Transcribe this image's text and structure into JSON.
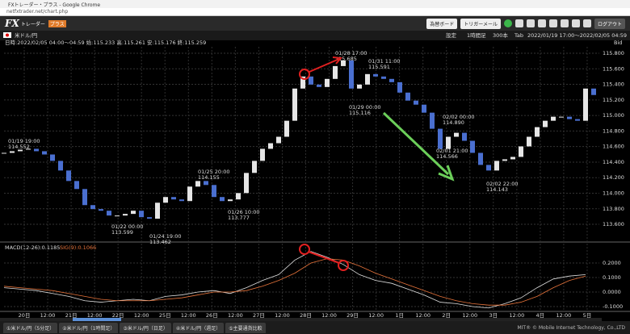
{
  "window": {
    "title": "FXトレーダー・プラス - Google Chrome",
    "url": "netfxtrader.net/chart.php"
  },
  "toolbar": {
    "logo": "FX",
    "logo_sub": "トレーダー",
    "logo_badge": "プラス",
    "buttons": [
      "為替ボード",
      "トリガーメール"
    ],
    "logout": "ログアウト"
  },
  "chart_header": {
    "pair": "米ドル/円",
    "controls": [
      "設定",
      "1時間足",
      "300本",
      "Tab"
    ],
    "range": "2022/01/19 17:00～2022/02/05 04:59"
  },
  "info": {
    "text": "日時:2022/02/05 04:00～04:59 始:115.233 高:115.261 安:115.176 終:115.259",
    "side": "Bid"
  },
  "chart_data": {
    "type": "candlestick",
    "closes": [
      114.519,
      114.54,
      114.56,
      114.571,
      114.54,
      114.498,
      114.416,
      114.292,
      114.157,
      114.054,
      113.847,
      113.796,
      113.775,
      113.713,
      113.713,
      113.734,
      113.775,
      113.692,
      113.672,
      113.878,
      113.951,
      113.92,
      113.899,
      114.085,
      114.157,
      114.106,
      113.951,
      113.899,
      113.92,
      114.002,
      114.261,
      114.416,
      114.571,
      114.643,
      114.726,
      114.932,
      115.346,
      115.501,
      115.397,
      115.366,
      115.47,
      115.635,
      115.707,
      115.346,
      115.397,
      115.532,
      115.501,
      115.47,
      115.428,
      115.294,
      115.191,
      115.139,
      115.036,
      114.829,
      114.571,
      114.726,
      114.777,
      114.674,
      114.519,
      114.364,
      114.292,
      114.416,
      114.436,
      114.467,
      114.602,
      114.726,
      114.85,
      114.932,
      114.984,
      114.984,
      114.953,
      114.932,
      115.346,
      115.263
    ],
    "up_color": "#e6e6e6",
    "down_color": "#4a6fd0",
    "ylim": [
      113.393,
      115.883
    ],
    "yticks": [
      {
        "value": 115.8,
        "label": "115.800"
      },
      {
        "value": 115.6,
        "label": "115.600"
      },
      {
        "value": 115.4,
        "label": "115.400"
      },
      {
        "value": 115.2,
        "label": "115.200"
      },
      {
        "value": 115.0,
        "label": "115.000"
      },
      {
        "value": 114.8,
        "label": "114.800"
      },
      {
        "value": 114.6,
        "label": "114.600"
      },
      {
        "value": 114.4,
        "label": "114.400"
      },
      {
        "value": 114.2,
        "label": "114.200"
      },
      {
        "value": 114.0,
        "label": "114.000"
      },
      {
        "value": 113.8,
        "label": "113.800"
      },
      {
        "value": 113.6,
        "label": "113.600"
      }
    ],
    "grid": true,
    "x_labels": [
      "20日",
      "12:00",
      "21日",
      "12:00",
      "22日",
      "12:00",
      "25日",
      "12:00",
      "26日",
      "12:00",
      "27日",
      "12:00",
      "28日",
      "12:00",
      "29日",
      "12:00",
      "1日",
      "12:00",
      "2日",
      "12:00",
      "3日",
      "12:00",
      "4日",
      "12:00",
      "5日"
    ],
    "annotations": [
      {
        "time": "01/19 19:00",
        "price": "114.552"
      },
      {
        "time": "01/22 00:00",
        "price": "113.599"
      },
      {
        "time": "01/24 19:00",
        "price": "113.462"
      },
      {
        "time": "01/25 20:00",
        "price": "114.155"
      },
      {
        "time": "01/26 10:00",
        "price": "113.777"
      },
      {
        "time": "01/28 17:00",
        "price": "115.685"
      },
      {
        "time": "01/29 00:00",
        "price": "115.116"
      },
      {
        "time": "01/31 11:00",
        "price": "115.591"
      },
      {
        "time": "02/01 21:00",
        "price": "114.566"
      },
      {
        "time": "02/02 00:00",
        "price": "114.890"
      },
      {
        "time": "02/02 22:00",
        "price": "114.143"
      }
    ]
  },
  "macd": {
    "type": "line",
    "label": "MACD(12-26):0.1185",
    "signal_label": "SIG(9):0.1066",
    "series": [
      {
        "color": "#e0e0e0",
        "values": [
          0.03,
          0.02,
          0.01,
          -0.01,
          -0.03,
          -0.06,
          -0.07,
          -0.06,
          -0.05,
          -0.06,
          -0.03,
          -0.02,
          0.0,
          0.01,
          -0.01,
          0.03,
          0.08,
          0.12,
          0.22,
          0.28,
          0.24,
          0.19,
          0.12,
          0.08,
          0.06,
          0.02,
          -0.02,
          -0.07,
          -0.08,
          -0.1,
          -0.11,
          -0.08,
          -0.04,
          0.03,
          0.09,
          0.11,
          0.12
        ]
      },
      {
        "color": "#e8743b",
        "values": [
          0.04,
          0.03,
          0.02,
          0.01,
          -0.01,
          -0.03,
          -0.05,
          -0.06,
          -0.06,
          -0.06,
          -0.05,
          -0.04,
          -0.02,
          0.0,
          0.0,
          0.01,
          0.04,
          0.08,
          0.13,
          0.2,
          0.23,
          0.22,
          0.18,
          0.13,
          0.09,
          0.05,
          0.01,
          -0.03,
          -0.06,
          -0.08,
          -0.09,
          -0.09,
          -0.07,
          -0.03,
          0.03,
          0.08,
          0.11
        ]
      }
    ],
    "ylim": [
      -0.128,
      0.328
    ],
    "yticks": [
      {
        "value": 0.2,
        "label": "0.2000"
      },
      {
        "value": 0.1,
        "label": "0.1000"
      },
      {
        "value": 0,
        "label": "0.0000"
      },
      {
        "value": -0.1,
        "label": "-0.1000"
      }
    ]
  },
  "tabs": [
    "①米ドル/円（5分足）",
    "②米ドル/円（1時間足）",
    "③米ドル/円（日足）",
    "④米ドル/円（週足）",
    "⑤主要通貨比較"
  ],
  "copyright": "MIT® © Mobile Internet Technology, Co.,LTD"
}
